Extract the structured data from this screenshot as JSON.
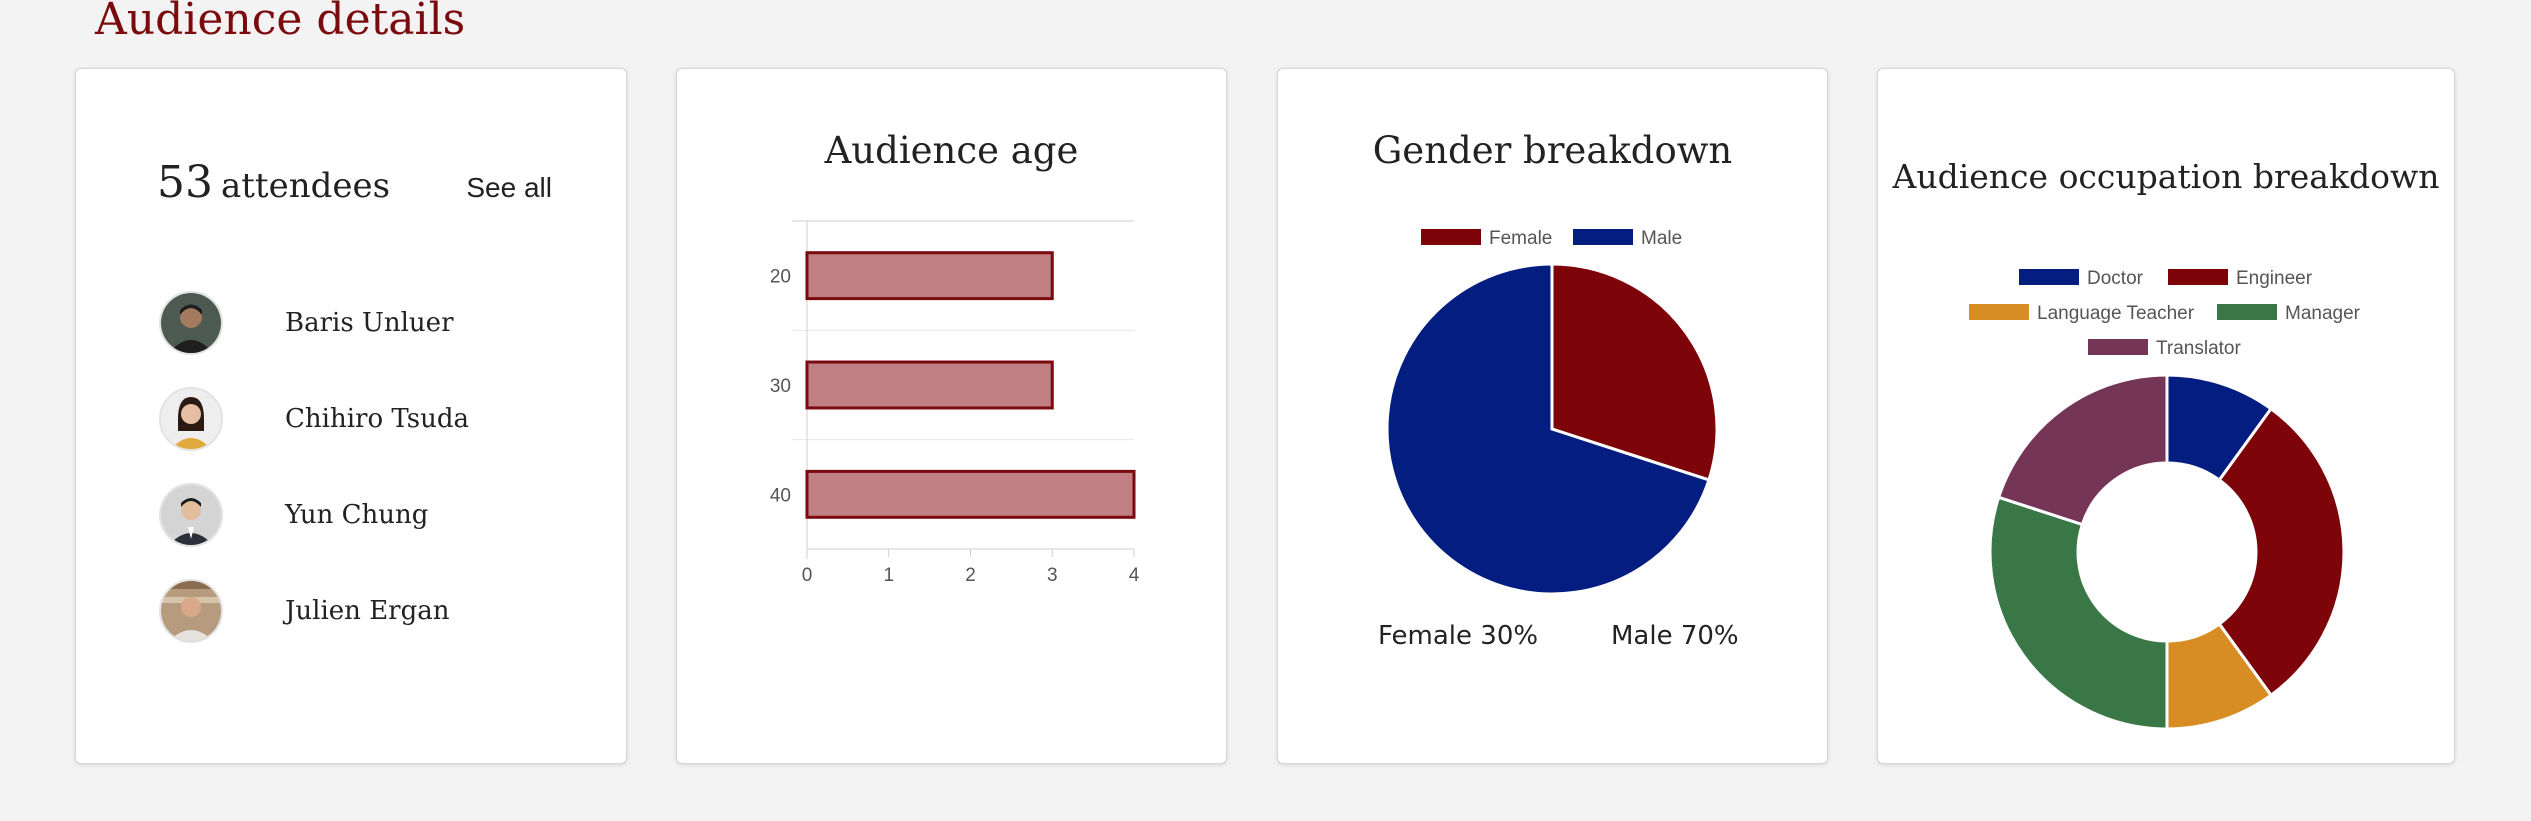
{
  "page": {
    "title": "Audience details"
  },
  "attendees": {
    "count": "53",
    "label": "attendees",
    "see_all": "See all",
    "people": [
      {
        "name": "Baris Unluer"
      },
      {
        "name": "Chihiro Tsuda"
      },
      {
        "name": "Yun Chung"
      },
      {
        "name": "Julien Ergan"
      }
    ]
  },
  "age_card": {
    "title": "Audience age"
  },
  "gender_card": {
    "title": "Gender breakdown",
    "female_pct": "Female 30%",
    "male_pct": "Male 70%"
  },
  "occupation_card": {
    "title": "Audience occupation breakdown"
  },
  "chart_data": [
    {
      "type": "bar",
      "orientation": "horizontal",
      "title": "Audience age",
      "categories": [
        "20",
        "30",
        "40"
      ],
      "values": [
        3,
        3,
        4
      ],
      "xticks": [
        "0",
        "1",
        "2",
        "3",
        "4"
      ],
      "xlim": [
        0,
        4
      ],
      "grid": true,
      "bar_fill": "#c07f82",
      "bar_stroke": "#7a0a0e"
    },
    {
      "type": "pie",
      "title": "Gender breakdown",
      "legend_placement": "top",
      "labels": [
        "Female",
        "Male"
      ],
      "values": [
        30,
        70
      ],
      "colors": [
        "#7d0409",
        "#031e80"
      ]
    },
    {
      "type": "pie",
      "variant": "doughnut",
      "title": "Audience occupation breakdown",
      "legend_placement": "top",
      "labels": [
        "Doctor",
        "Engineer",
        "Language Teacher",
        "Manager",
        "Translator"
      ],
      "values": [
        10,
        30,
        10,
        30,
        20
      ],
      "colors": [
        "#031e80",
        "#7d0409",
        "#d78d24",
        "#3a7747",
        "#743556"
      ]
    }
  ]
}
